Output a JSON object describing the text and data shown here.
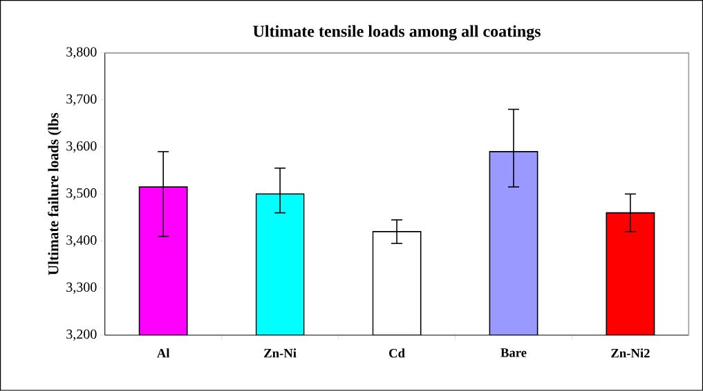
{
  "chart_data": {
    "type": "bar",
    "title": "Ultimate tensile loads among all coatings",
    "ylabel": "Ultimate failure loads (lbs",
    "categories": [
      "Al",
      "Zn-Ni",
      "Cd",
      "Bare",
      "Zn-Ni2"
    ],
    "values": [
      3515,
      3500,
      3420,
      3590,
      3460
    ],
    "colors": [
      "#ff00ff",
      "#00ffff",
      "#ffffff",
      "#9999ff",
      "#ff0000"
    ],
    "errors": [
      [
        3410,
        3590
      ],
      [
        3460,
        3555
      ],
      [
        3395,
        3445
      ],
      [
        3515,
        3680
      ],
      [
        3420,
        3500
      ]
    ],
    "ylim": [
      3200,
      3800
    ],
    "yticks": [
      {
        "value": 3200,
        "label": "3,200"
      },
      {
        "value": 3300,
        "label": "3,300"
      },
      {
        "value": 3400,
        "label": "3,400"
      },
      {
        "value": 3500,
        "label": "3,500"
      },
      {
        "value": 3600,
        "label": "3,600"
      },
      {
        "value": 3700,
        "label": "3,700"
      },
      {
        "value": 3800,
        "label": "3,800"
      }
    ],
    "grid": false
  }
}
